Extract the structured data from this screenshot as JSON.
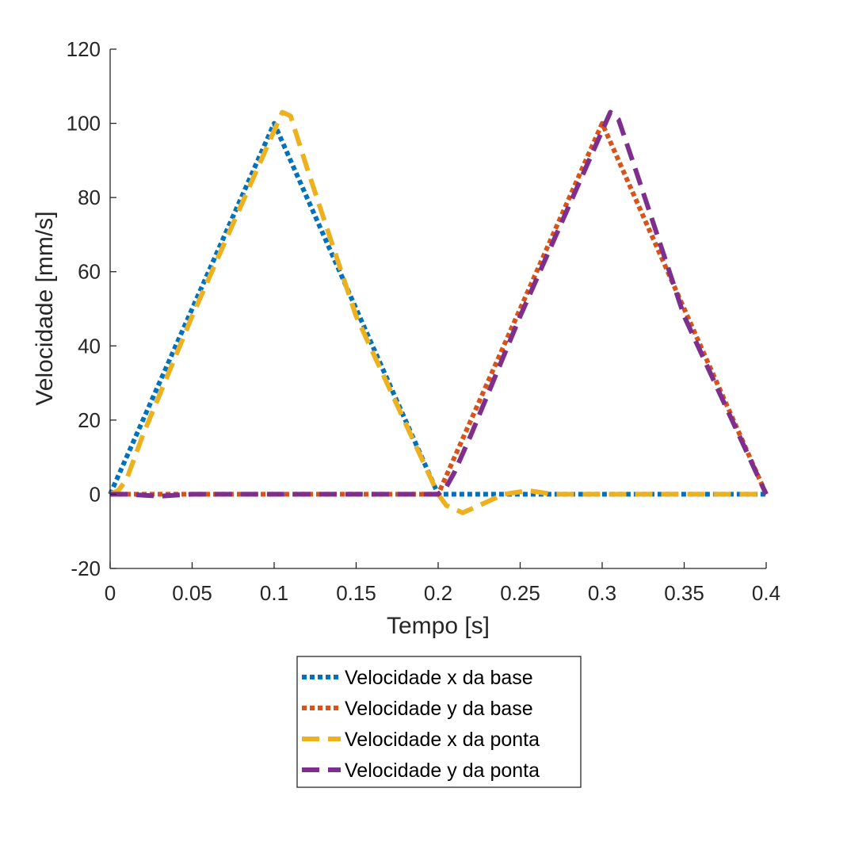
{
  "chart_data": {
    "type": "line",
    "xlabel": "Tempo [s]",
    "ylabel": "Velocidade [mm/s]",
    "xlim": [
      0,
      0.4
    ],
    "ylim": [
      -20,
      120
    ],
    "xticks": [
      0,
      0.05,
      0.1,
      0.15,
      0.2,
      0.25,
      0.3,
      0.35,
      0.4
    ],
    "xtick_labels": [
      "0",
      "0.05",
      "0.1",
      "0.15",
      "0.2",
      "0.25",
      "0.3",
      "0.35",
      "0.4"
    ],
    "yticks": [
      -20,
      0,
      20,
      40,
      60,
      80,
      100,
      120
    ],
    "ytick_labels": [
      "-20",
      "0",
      "20",
      "40",
      "60",
      "80",
      "100",
      "120"
    ],
    "grid": false,
    "legend_position": "bottom-outside",
    "series": [
      {
        "name": "Velocidade x da base",
        "color": "#0072BD",
        "style": "dotted",
        "x": [
          0,
          0.1,
          0.2,
          0.4
        ],
        "y": [
          0,
          100,
          0,
          0
        ]
      },
      {
        "name": "Velocidade y da base",
        "color": "#D95319",
        "style": "dotted",
        "x": [
          0,
          0.2,
          0.3,
          0.4
        ],
        "y": [
          0,
          0,
          100,
          0
        ]
      },
      {
        "name": "Velocidade x da ponta",
        "color": "#EDB120",
        "style": "dashed",
        "x": [
          0,
          0.005,
          0.01,
          0.02,
          0.05,
          0.1,
          0.105,
          0.11,
          0.12,
          0.15,
          0.2,
          0.205,
          0.215,
          0.225,
          0.24,
          0.255,
          0.27,
          0.3,
          0.4
        ],
        "y": [
          0,
          1,
          4,
          16,
          48,
          98,
          103,
          102,
          88,
          48,
          0,
          -3,
          -5,
          -3,
          0,
          1,
          0,
          0,
          0
        ]
      },
      {
        "name": "Velocidade y da ponta",
        "color": "#7E2F8E",
        "style": "dashed",
        "x": [
          0,
          0.01,
          0.03,
          0.05,
          0.1,
          0.15,
          0.2,
          0.205,
          0.21,
          0.22,
          0.25,
          0.3,
          0.305,
          0.31,
          0.32,
          0.35,
          0.4
        ],
        "y": [
          0,
          0,
          -0.5,
          0,
          0,
          0,
          0,
          2,
          6,
          16,
          48,
          98,
          103,
          101,
          88,
          48,
          0
        ]
      }
    ]
  }
}
